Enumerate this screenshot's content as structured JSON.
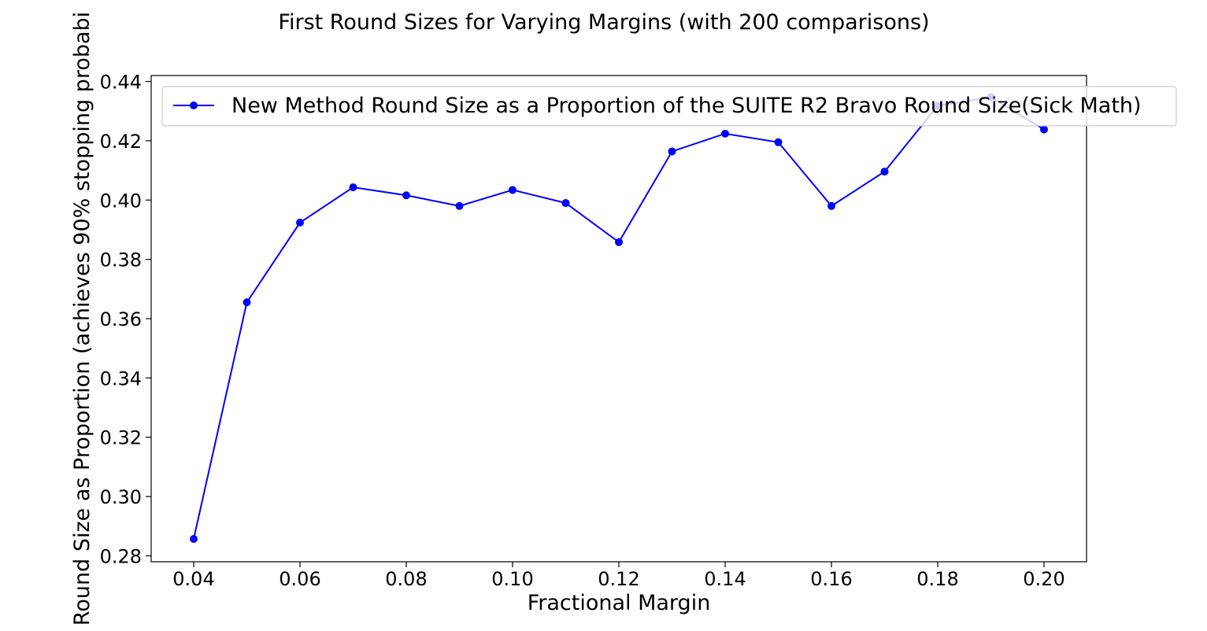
{
  "chart_data": {
    "type": "line",
    "title": "First Round Sizes for Varying Margins (with 200 comparisons)",
    "xlabel": "Fractional Margin",
    "ylabel": "Round Size as Proportion (achieves 90% stopping probabi",
    "xlim": [
      0.032,
      0.208
    ],
    "ylim": [
      0.278,
      0.442
    ],
    "xticks": [
      0.04,
      0.06,
      0.08,
      0.1,
      0.12,
      0.14,
      0.16,
      0.18,
      0.2
    ],
    "xtick_labels": [
      "0.04",
      "0.06",
      "0.08",
      "0.10",
      "0.12",
      "0.14",
      "0.16",
      "0.18",
      "0.20"
    ],
    "yticks": [
      0.28,
      0.3,
      0.32,
      0.34,
      0.36,
      0.38,
      0.4,
      0.42,
      0.44
    ],
    "ytick_labels": [
      "0.28",
      "0.30",
      "0.32",
      "0.34",
      "0.36",
      "0.38",
      "0.40",
      "0.42",
      "0.44"
    ],
    "grid": false,
    "legend_position": "top-right",
    "series": [
      {
        "name": "New Method Round Size as a Proportion of the SUITE R2 Bravo Round Size(Sick Math)",
        "color": "#0000ff",
        "marker": "circle",
        "x": [
          0.04,
          0.05,
          0.06,
          0.07,
          0.08,
          0.09,
          0.1,
          0.11,
          0.12,
          0.13,
          0.14,
          0.15,
          0.16,
          0.17,
          0.18,
          0.19,
          0.2
        ],
        "y": [
          0.2857,
          0.3655,
          0.3924,
          0.4043,
          0.4016,
          0.398,
          0.4034,
          0.399,
          0.3858,
          0.4164,
          0.4224,
          0.4195,
          0.398,
          0.4096,
          0.4318,
          0.4347,
          0.4238
        ]
      }
    ]
  }
}
